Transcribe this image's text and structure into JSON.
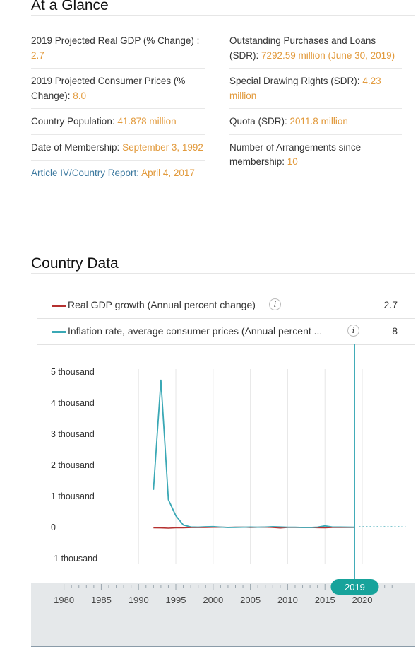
{
  "glance": {
    "title": "At a Glance",
    "left": [
      {
        "label": "2019 Projected Real GDP (% Change) : ",
        "value": "2.7"
      },
      {
        "label": "2019 Projected Consumer Prices (% Change): ",
        "value": "8.0"
      },
      {
        "label": "Country Population: ",
        "value": "41.878 million"
      },
      {
        "label": "Date of Membership: ",
        "value": "September 3, 1992"
      },
      {
        "label": "Article IV/Country Report: ",
        "value": "April 4, 2017"
      }
    ],
    "right": [
      {
        "label": "Outstanding Purchases and Loans (SDR): ",
        "value": "7292.59 million (June 30, 2019)"
      },
      {
        "label": "Special Drawing Rights (SDR): ",
        "value": "4.23 million"
      },
      {
        "label": "Quota (SDR): ",
        "value": "2011.8 million"
      },
      {
        "label": "Number of Arrangements since membership: ",
        "value": "10"
      }
    ]
  },
  "country_data": {
    "title": "Country Data",
    "legend": [
      {
        "label": "Real GDP growth (Annual percent change)",
        "value": "2.7",
        "color": "#b5302f"
      },
      {
        "label": "Inflation rate, average consumer prices (Annual percent ...",
        "value": "8",
        "color": "#3aa8b5"
      }
    ],
    "info_glyph": "i"
  },
  "chart_data": {
    "type": "line",
    "y_ticks": [
      5000,
      4000,
      3000,
      2000,
      1000,
      0,
      -1000
    ],
    "y_tick_labels": [
      "5 thousand",
      "4 thousand",
      "3 thousand",
      "2 thousand",
      "1 thousand",
      "0",
      "-1 thousand"
    ],
    "ylim": [
      -1000,
      5000
    ],
    "x_range": [
      1978,
      2026
    ],
    "navigator_ticks": [
      "1980",
      "1985",
      "1990",
      "1995",
      "2000",
      "2005",
      "2010",
      "2015",
      "2020"
    ],
    "grid": true,
    "selected_year_label": "2019",
    "series": [
      {
        "name": "Real GDP growth (Annual percent change)",
        "color": "#b5302f",
        "x": [
          1992,
          1993,
          1994,
          1995,
          1996,
          1997,
          1998,
          1999,
          2000,
          2001,
          2002,
          2003,
          2004,
          2005,
          2006,
          2007,
          2008,
          2009,
          2010,
          2011,
          2012,
          2013,
          2014,
          2015,
          2016,
          2017,
          2018,
          2019
        ],
        "y": [
          -10,
          -14,
          -23,
          -12,
          -10,
          -3,
          -2,
          3,
          6,
          9,
          5,
          9,
          12,
          3,
          7,
          8,
          2,
          -15,
          0,
          5,
          0,
          0,
          -7,
          -10,
          2,
          2,
          3,
          2.7
        ]
      },
      {
        "name": "Inflation rate, average consumer prices (Annual percent change)",
        "color": "#3aa8b5",
        "x": [
          1992,
          1993,
          1994,
          1995,
          1996,
          1997,
          1998,
          1999,
          2000,
          2001,
          2002,
          2003,
          2004,
          2005,
          2006,
          2007,
          2008,
          2009,
          2010,
          2011,
          2012,
          2013,
          2014,
          2015,
          2016,
          2017,
          2018,
          2019
        ],
        "y": [
          1210,
          4735,
          891,
          377,
          80,
          16,
          11,
          23,
          28,
          12,
          1,
          5,
          9,
          14,
          9,
          13,
          25,
          16,
          9,
          8,
          1,
          0,
          12,
          49,
          14,
          14,
          11,
          8
        ]
      }
    ]
  }
}
